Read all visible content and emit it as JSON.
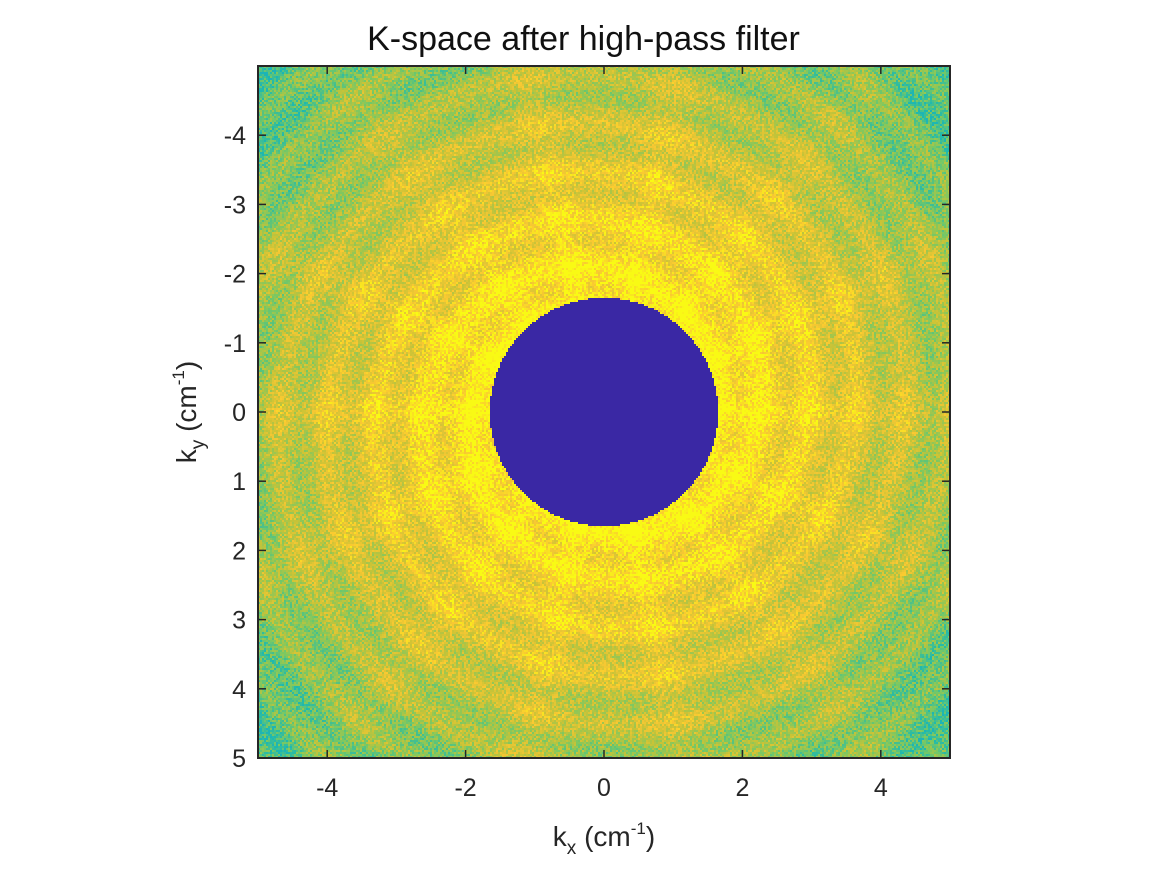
{
  "chart_data": {
    "type": "heatmap",
    "title": "K-space after high-pass filter",
    "xlabel": {
      "base": "k",
      "sub": "x",
      "rest": " (cm",
      "sup": "-1",
      "end": ")"
    },
    "ylabel": {
      "base": "k",
      "sub": "y",
      "rest": " (cm",
      "sup": "-1",
      "end": ")"
    },
    "xlim": [
      -5,
      5
    ],
    "ylim": [
      -5,
      5
    ],
    "y_reversed": true,
    "x_ticks": [
      -4,
      -2,
      0,
      2,
      4
    ],
    "x_tick_labels": [
      "-4",
      "-2",
      "0",
      "2",
      "4"
    ],
    "y_ticks": [
      -4,
      -3,
      -2,
      -1,
      0,
      1,
      2,
      3,
      4,
      5
    ],
    "y_tick_labels": [
      "-4",
      "-3",
      "-2",
      "-1",
      "0",
      "1",
      "2",
      "3",
      "4",
      "5"
    ],
    "colormap": "parula",
    "colors": {
      "filtered_region": "#3a28a4",
      "high": "#f6d93a",
      "mid": "#8ccb5e",
      "low": "#1aaed8",
      "axes_box": "#262626"
    },
    "filter": {
      "shape": "circle",
      "center": [
        0,
        0
      ],
      "radius_cm_inv": 1.65
    },
    "spectrum": {
      "description_free": true,
      "peak_near_center": 1.0,
      "edge_level": 0.3,
      "radial_streaks": 14
    },
    "grid": false,
    "legend": "none"
  }
}
